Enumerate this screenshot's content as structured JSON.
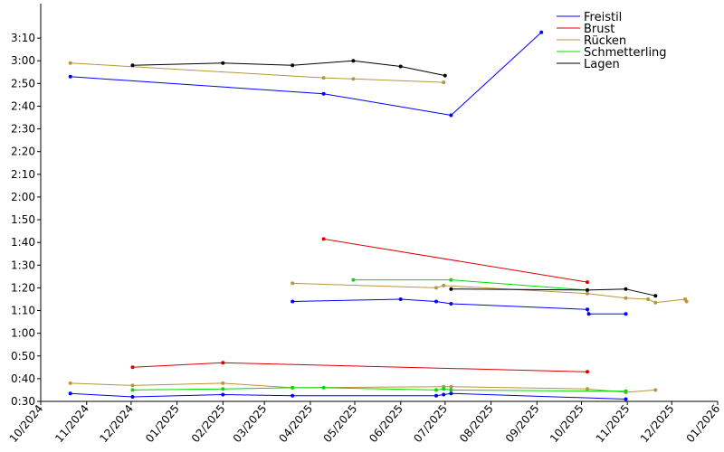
{
  "chart_data": {
    "type": "line",
    "title": "",
    "xlabel": "",
    "ylabel": "",
    "x_range": [
      "2024-10-01",
      "2026-01-01"
    ],
    "y_range_seconds": [
      30,
      200
    ],
    "legend_position": "top-right",
    "grid": false,
    "x_tick_labels": [
      "10/2024",
      "11/2024",
      "12/2024",
      "01/2025",
      "02/2025",
      "03/2025",
      "04/2025",
      "05/2025",
      "06/2025",
      "07/2025",
      "08/2025",
      "09/2025",
      "10/2025",
      "11/2025",
      "12/2025",
      "01/2026"
    ],
    "y_tick_labels": [
      "0:30",
      "0:40",
      "0:50",
      "1:00",
      "1:10",
      "1:20",
      "1:30",
      "1:40",
      "1:50",
      "2:00",
      "2:10",
      "2:20",
      "2:30",
      "2:40",
      "2:50",
      "3:00",
      "3:10"
    ],
    "series": [
      {
        "name": "Freistil",
        "color": "#0000ff",
        "lines": [
          [
            [
              "2024-10-21",
              173.0
            ],
            [
              "2025-04-10",
              165.5
            ],
            [
              "2025-07-05",
              156.0
            ],
            [
              "2025-09-04",
              192.5
            ]
          ],
          [
            [
              "2025-03-20",
              74.0
            ],
            [
              "2025-06-01",
              75.0
            ],
            [
              "2025-06-25",
              74.0
            ],
            [
              "2025-07-05",
              73.0
            ],
            [
              "2025-10-05",
              70.5
            ],
            [
              "2025-10-06",
              68.5
            ],
            [
              "2025-10-31",
              68.5
            ]
          ],
          [
            [
              "2024-10-21",
              33.5
            ],
            [
              "2024-12-02",
              32.0
            ],
            [
              "2025-02-01",
              33.0
            ],
            [
              "2025-03-20",
              32.5
            ],
            [
              "2025-06-25",
              32.5
            ],
            [
              "2025-06-30",
              33.0
            ],
            [
              "2025-07-05",
              33.5
            ],
            [
              "2025-10-31",
              31.0
            ]
          ]
        ]
      },
      {
        "name": "Brust",
        "color": "#dd0000",
        "lines": [
          [
            [
              "2025-04-10",
              101.5
            ],
            [
              "2025-10-05",
              82.5
            ]
          ],
          [
            [
              "2024-12-02",
              45.0
            ],
            [
              "2025-02-01",
              47.0
            ],
            [
              "2025-10-05",
              43.0
            ]
          ]
        ]
      },
      {
        "name": "Rücken",
        "color": "#b8963c",
        "lines": [
          [
            [
              "2024-10-21",
              179.0
            ],
            [
              "2025-04-10",
              172.5
            ],
            [
              "2025-04-30",
              172.0
            ],
            [
              "2025-06-30",
              170.5
            ]
          ],
          [
            [
              "2025-03-20",
              82.0
            ],
            [
              "2025-06-25",
              80.0
            ],
            [
              "2025-06-30",
              81.0
            ],
            [
              "2025-10-05",
              77.5
            ],
            [
              "2025-10-31",
              75.5
            ],
            [
              "2025-11-15",
              75.0
            ],
            [
              "2025-11-20",
              73.5
            ],
            [
              "2025-12-10",
              75.0
            ],
            [
              "2025-12-11",
              74.0
            ]
          ],
          [
            [
              "2024-10-21",
              38.0
            ],
            [
              "2024-12-02",
              37.0
            ],
            [
              "2025-02-01",
              38.0
            ],
            [
              "2025-03-20",
              36.0
            ],
            [
              "2025-06-30",
              36.5
            ],
            [
              "2025-07-05",
              36.5
            ],
            [
              "2025-10-05",
              35.5
            ],
            [
              "2025-10-31",
              34.0
            ],
            [
              "2025-11-20",
              35.0
            ]
          ]
        ]
      },
      {
        "name": "Schmetterling",
        "color": "#00dd00",
        "lines": [
          [
            [
              "2025-04-30",
              83.5
            ],
            [
              "2025-07-05",
              83.5
            ],
            [
              "2025-10-05",
              79.0
            ]
          ],
          [
            [
              "2024-12-02",
              35.0
            ],
            [
              "2025-02-01",
              35.5
            ],
            [
              "2025-03-20",
              36.0
            ],
            [
              "2025-04-10",
              36.0
            ],
            [
              "2025-06-25",
              35.0
            ],
            [
              "2025-06-30",
              35.5
            ],
            [
              "2025-07-05",
              35.0
            ],
            [
              "2025-10-31",
              34.5
            ]
          ]
        ]
      },
      {
        "name": "Lagen",
        "color": "#000000",
        "lines": [
          [
            [
              "2024-12-02",
              178.0
            ],
            [
              "2025-02-01",
              179.0
            ],
            [
              "2025-03-20",
              178.0
            ],
            [
              "2025-04-30",
              180.0
            ],
            [
              "2025-06-01",
              177.5
            ],
            [
              "2025-07-01",
              173.5
            ]
          ],
          [
            [
              "2025-07-05",
              79.5
            ],
            [
              "2025-10-05",
              79.0
            ],
            [
              "2025-10-31",
              79.5
            ],
            [
              "2025-11-20",
              76.5
            ]
          ]
        ]
      }
    ]
  }
}
